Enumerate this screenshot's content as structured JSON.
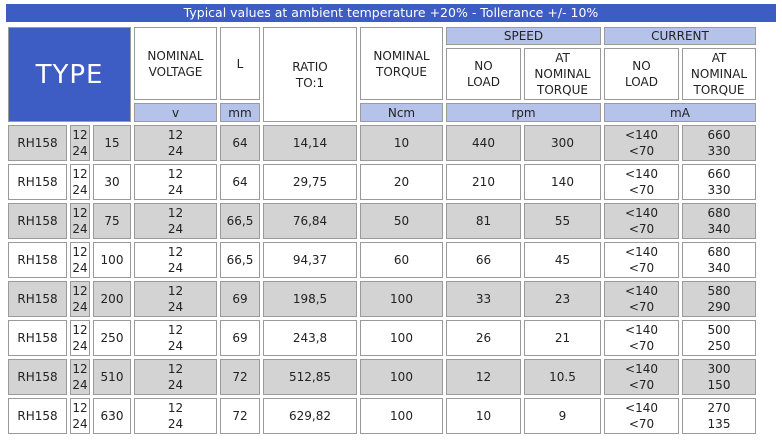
{
  "banner": "Typical values at ambient temperature +20% - Tollerance +/- 10%",
  "header": {
    "type": "TYPE",
    "nominal_voltage": [
      "NOMINAL",
      "VOLTAGE"
    ],
    "length": "L",
    "ratio": [
      "RATIO",
      "TO:1"
    ],
    "nominal_torque": [
      "NOMINAL",
      "TORQUE"
    ],
    "speed": "SPEED",
    "current": "CURRENT",
    "no_load": [
      "NO",
      "LOAD"
    ],
    "at_nominal_torque": [
      "AT",
      "NOMINAL",
      "TORQUE"
    ]
  },
  "units": {
    "voltage": "v",
    "length": "mm",
    "torque": "Ncm",
    "speed": "rpm",
    "current": "mA"
  },
  "rows": [
    {
      "model": "RH158",
      "volt_opts": [
        "12",
        "24"
      ],
      "ratio_code": "15",
      "voltage": [
        "12",
        "24"
      ],
      "length": "64",
      "ratio": "14,14",
      "torque": "10",
      "speed_no_load": "440",
      "speed_nominal": "300",
      "current_no_load": [
        "<140",
        "<70"
      ],
      "current_nominal": [
        "660",
        "330"
      ]
    },
    {
      "model": "RH158",
      "volt_opts": [
        "12",
        "24"
      ],
      "ratio_code": "30",
      "voltage": [
        "12",
        "24"
      ],
      "length": "64",
      "ratio": "29,75",
      "torque": "20",
      "speed_no_load": "210",
      "speed_nominal": "140",
      "current_no_load": [
        "<140",
        "<70"
      ],
      "current_nominal": [
        "660",
        "330"
      ]
    },
    {
      "model": "RH158",
      "volt_opts": [
        "12",
        "24"
      ],
      "ratio_code": "75",
      "voltage": [
        "12",
        "24"
      ],
      "length": "66,5",
      "ratio": "76,84",
      "torque": "50",
      "speed_no_load": "81",
      "speed_nominal": "55",
      "current_no_load": [
        "<140",
        "<70"
      ],
      "current_nominal": [
        "680",
        "340"
      ]
    },
    {
      "model": "RH158",
      "volt_opts": [
        "12",
        "24"
      ],
      "ratio_code": "100",
      "voltage": [
        "12",
        "24"
      ],
      "length": "66,5",
      "ratio": "94,37",
      "torque": "60",
      "speed_no_load": "66",
      "speed_nominal": "45",
      "current_no_load": [
        "<140",
        "<70"
      ],
      "current_nominal": [
        "680",
        "340"
      ]
    },
    {
      "model": "RH158",
      "volt_opts": [
        "12",
        "24"
      ],
      "ratio_code": "200",
      "voltage": [
        "12",
        "24"
      ],
      "length": "69",
      "ratio": "198,5",
      "torque": "100",
      "speed_no_load": "33",
      "speed_nominal": "23",
      "current_no_load": [
        "<140",
        "<70"
      ],
      "current_nominal": [
        "580",
        "290"
      ]
    },
    {
      "model": "RH158",
      "volt_opts": [
        "12",
        "24"
      ],
      "ratio_code": "250",
      "voltage": [
        "12",
        "24"
      ],
      "length": "69",
      "ratio": "243,8",
      "torque": "100",
      "speed_no_load": "26",
      "speed_nominal": "21",
      "current_no_load": [
        "<140",
        "<70"
      ],
      "current_nominal": [
        "500",
        "250"
      ]
    },
    {
      "model": "RH158",
      "volt_opts": [
        "12",
        "24"
      ],
      "ratio_code": "510",
      "voltage": [
        "12",
        "24"
      ],
      "length": "72",
      "ratio": "512,85",
      "torque": "100",
      "speed_no_load": "12",
      "speed_nominal": "10.5",
      "current_no_load": [
        "<140",
        "<70"
      ],
      "current_nominal": [
        "300",
        "150"
      ]
    },
    {
      "model": "RH158",
      "volt_opts": [
        "12",
        "24"
      ],
      "ratio_code": "630",
      "voltage": [
        "12",
        "24"
      ],
      "length": "72",
      "ratio": "629,82",
      "torque": "100",
      "speed_no_load": "10",
      "speed_nominal": "9",
      "current_no_load": [
        "<140",
        "<70"
      ],
      "current_nominal": [
        "270",
        "135"
      ]
    }
  ]
}
